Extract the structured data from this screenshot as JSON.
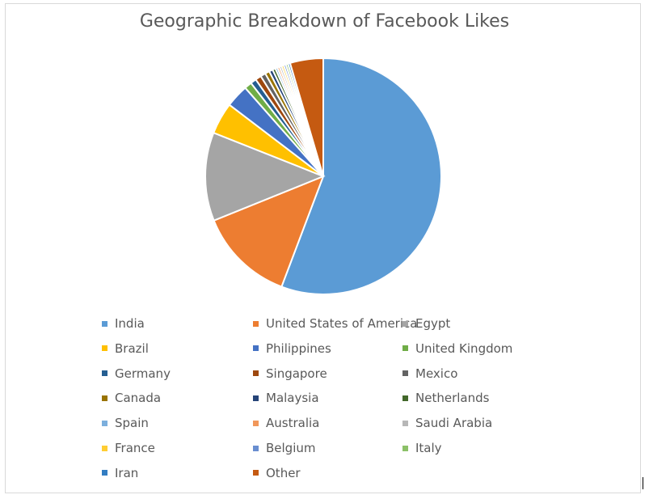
{
  "chart_data": {
    "type": "pie",
    "title": "Geographic Breakdown of Facebook Likes",
    "legend_position": "bottom",
    "slices": [
      {
        "label": "India",
        "value": 55.2,
        "color": "#5B9BD5"
      },
      {
        "label": "United States of America",
        "value": 13.0,
        "color": "#ED7D31"
      },
      {
        "label": "Egypt",
        "value": 12.0,
        "color": "#A5A5A5"
      },
      {
        "label": "Brazil",
        "value": 4.3,
        "color": "#FFC000"
      },
      {
        "label": "Philippines",
        "value": 3.1,
        "color": "#4472C4"
      },
      {
        "label": "United Kingdom",
        "value": 1.0,
        "color": "#70AD47"
      },
      {
        "label": "Germany",
        "value": 0.8,
        "color": "#255E91"
      },
      {
        "label": "Singapore",
        "value": 0.8,
        "color": "#9E480E"
      },
      {
        "label": "Mexico",
        "value": 0.7,
        "color": "#636363"
      },
      {
        "label": "Canada",
        "value": 0.6,
        "color": "#997300"
      },
      {
        "label": "Malaysia",
        "value": 0.5,
        "color": "#264478"
      },
      {
        "label": "Netherlands",
        "value": 0.4,
        "color": "#43682B"
      },
      {
        "label": "Spain",
        "value": 0.3,
        "color": "#7CAFDD"
      },
      {
        "label": "Australia",
        "value": 0.3,
        "color": "#F1975A"
      },
      {
        "label": "Saudi Arabia",
        "value": 0.3,
        "color": "#B7B7B7"
      },
      {
        "label": "France",
        "value": 0.3,
        "color": "#FFCD33"
      },
      {
        "label": "Belgium",
        "value": 0.3,
        "color": "#698ED0"
      },
      {
        "label": "Italy",
        "value": 0.3,
        "color": "#8CC168"
      },
      {
        "label": "Iran",
        "value": 0.3,
        "color": "#327DC2"
      },
      {
        "label": "Other",
        "value": 4.5,
        "color": "#C55A11"
      }
    ]
  }
}
